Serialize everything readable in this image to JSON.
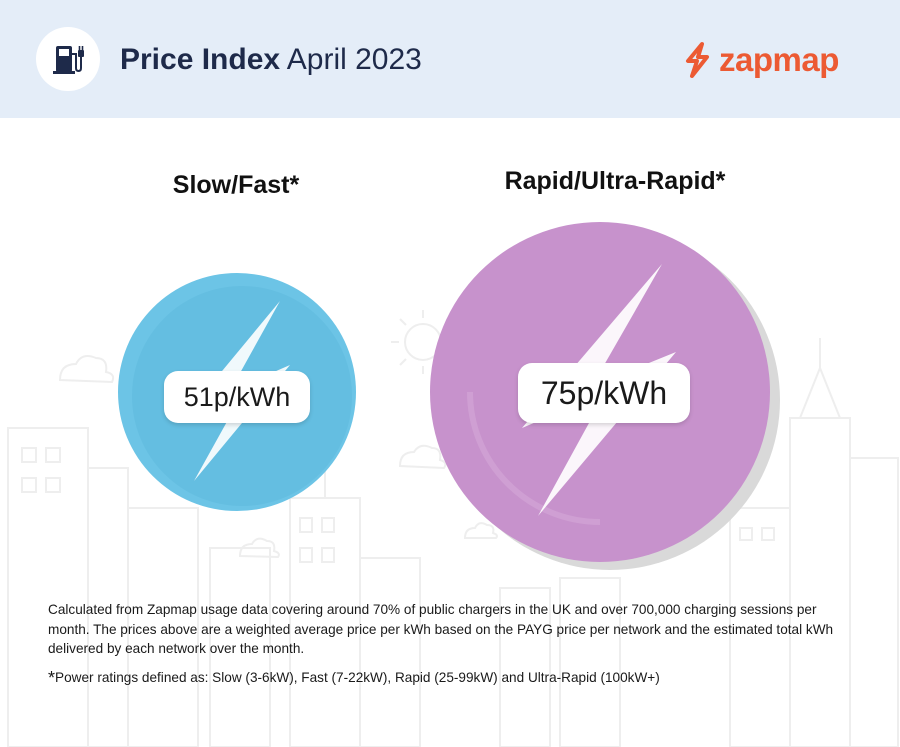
{
  "header": {
    "title_bold": "Price Index",
    "title_light": "April 2023",
    "brand": "zapmap",
    "icon": "fuel-pump-plug-icon"
  },
  "categories": [
    {
      "label": "Slow/Fast*",
      "price": "51p/kWh",
      "color": "#6cc4e6"
    },
    {
      "label": "Rapid/Ultra-Rapid*",
      "price": "75p/kWh",
      "color": "#c792cc"
    }
  ],
  "footnote": {
    "description": "Calculated from Zapmap usage data covering around 70% of public chargers in the UK and over 700,000 charging sessions per month. The prices above are a weighted average price per kWh based on the PAYG price per network and the estimated total kWh delivered by each network over the month.",
    "star": "*",
    "power_ratings": "Power ratings defined as: Slow (3-6kW), Fast (7-22kW), Rapid (25-99kW) and Ultra-Rapid (100kW+)"
  },
  "colors": {
    "header_bg": "#e4edf8",
    "brand": "#ec5a33",
    "slow": "#6cc4e6",
    "rapid": "#c792cc"
  }
}
